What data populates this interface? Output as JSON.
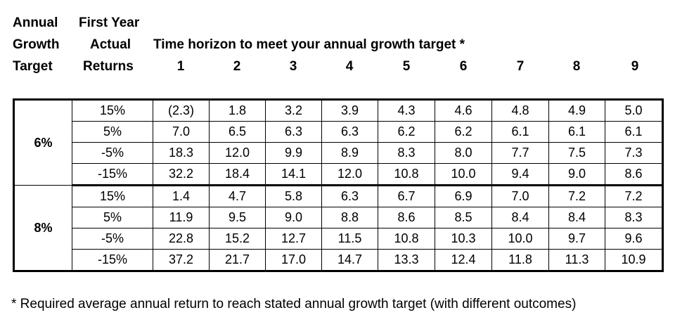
{
  "headers": {
    "col1": [
      "Annual",
      "Growth",
      "Target"
    ],
    "col2": [
      "First Year",
      "Actual",
      "Returns"
    ],
    "title": "Time horizon to meet your annual growth target *",
    "years": [
      "1",
      "2",
      "3",
      "4",
      "5",
      "6",
      "7",
      "8",
      "9"
    ]
  },
  "groups": [
    {
      "target": "6%",
      "rows": [
        {
          "ret": "15%",
          "vals": [
            "(2.3)",
            "1.8",
            "3.2",
            "3.9",
            "4.3",
            "4.6",
            "4.8",
            "4.9",
            "5.0"
          ]
        },
        {
          "ret": "5%",
          "vals": [
            "7.0",
            "6.5",
            "6.3",
            "6.3",
            "6.2",
            "6.2",
            "6.1",
            "6.1",
            "6.1"
          ]
        },
        {
          "ret": "-5%",
          "vals": [
            "18.3",
            "12.0",
            "9.9",
            "8.9",
            "8.3",
            "8.0",
            "7.7",
            "7.5",
            "7.3"
          ]
        },
        {
          "ret": "-15%",
          "vals": [
            "32.2",
            "18.4",
            "14.1",
            "12.0",
            "10.8",
            "10.0",
            "9.4",
            "9.0",
            "8.6"
          ]
        }
      ]
    },
    {
      "target": "8%",
      "rows": [
        {
          "ret": "15%",
          "vals": [
            "1.4",
            "4.7",
            "5.8",
            "6.3",
            "6.7",
            "6.9",
            "7.0",
            "7.2",
            "7.2"
          ]
        },
        {
          "ret": "5%",
          "vals": [
            "11.9",
            "9.5",
            "9.0",
            "8.8",
            "8.6",
            "8.5",
            "8.4",
            "8.4",
            "8.3"
          ]
        },
        {
          "ret": "-5%",
          "vals": [
            "22.8",
            "15.2",
            "12.7",
            "11.5",
            "10.8",
            "10.3",
            "10.0",
            "9.7",
            "9.6"
          ]
        },
        {
          "ret": "-15%",
          "vals": [
            "37.2",
            "21.7",
            "17.0",
            "14.7",
            "13.3",
            "12.4",
            "11.8",
            "11.3",
            "10.9"
          ]
        }
      ]
    }
  ],
  "footnote": "* Required average annual return to reach stated annual growth target (with different outcomes)"
}
